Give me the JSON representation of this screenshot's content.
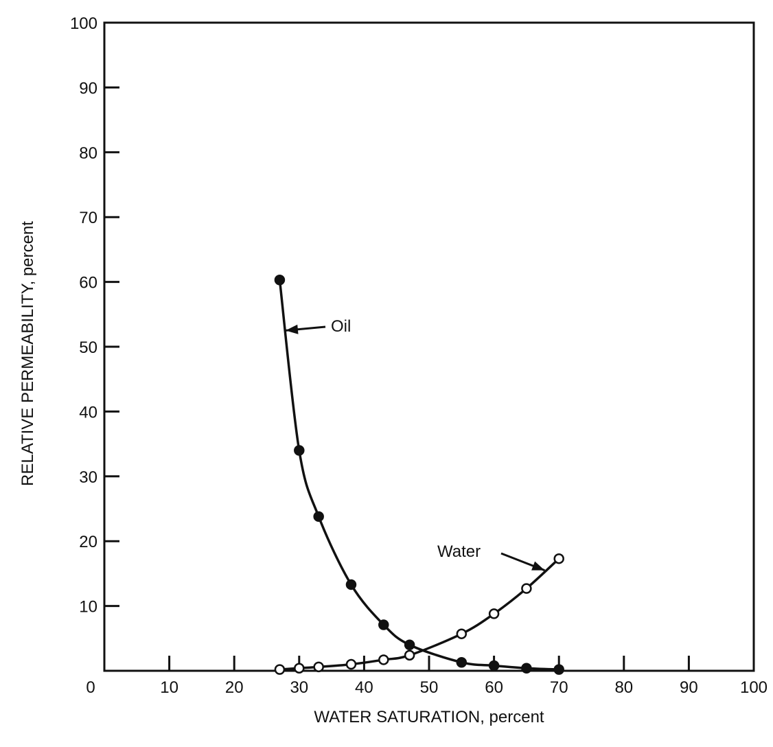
{
  "chart_data": {
    "type": "line",
    "title": "",
    "xlabel": "WATER SATURATION, percent",
    "ylabel": "RELATIVE PERMEABILITY, percent",
    "xlim": [
      0,
      100
    ],
    "ylim": [
      0,
      100
    ],
    "x_ticks": [
      0,
      10,
      20,
      30,
      40,
      50,
      60,
      70,
      80,
      90,
      100
    ],
    "y_ticks": [
      0,
      10,
      20,
      30,
      40,
      50,
      60,
      70,
      80,
      90,
      100
    ],
    "grid": false,
    "legend": "none",
    "series": [
      {
        "name": "Oil",
        "marker": "filled-circle",
        "x": [
          27,
          30,
          33,
          38,
          43,
          47,
          55,
          60,
          65,
          70
        ],
        "y": [
          60.3,
          34,
          23.8,
          13.3,
          7.1,
          4,
          1.3,
          0.8,
          0.4,
          0.2
        ]
      },
      {
        "name": "Water",
        "marker": "open-circle",
        "x": [
          27,
          30,
          33,
          38,
          43,
          47,
          55,
          60,
          65,
          70
        ],
        "y": [
          0.2,
          0.4,
          0.6,
          1,
          1.7,
          2.4,
          5.7,
          8.8,
          12.7,
          17.3
        ]
      }
    ],
    "annotations": [
      {
        "text": "Oil",
        "series": "Oil"
      },
      {
        "text": "Water",
        "series": "Water"
      }
    ],
    "colors": {
      "ink": "#111111",
      "background": "#ffffff"
    }
  }
}
